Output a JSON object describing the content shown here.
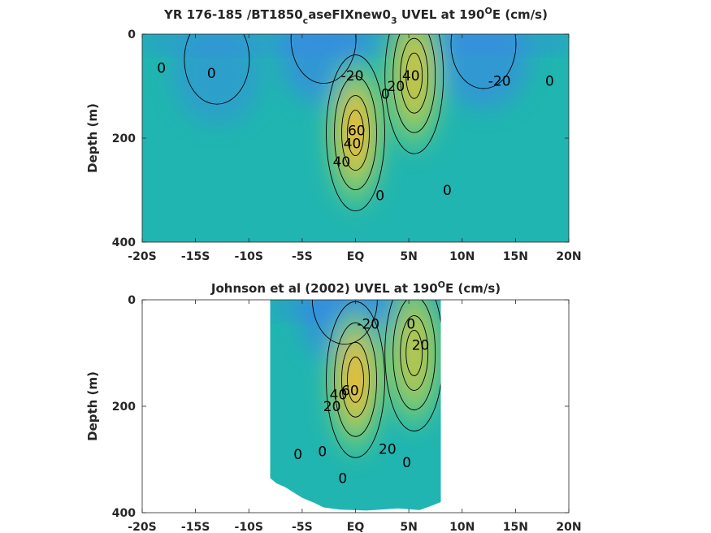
{
  "chart_data": [
    {
      "type": "heatmap",
      "title": "YR 176-185 /BT1850",
      "title_sub": "c",
      "title_mid": "aseFIXnew0",
      "title_sub2": "3",
      "title_end": " UVEL at 190",
      "title_sup": "O",
      "title_tail": "E (cm/s)",
      "ylabel": "Depth (m)",
      "xlim": [
        -20,
        20
      ],
      "ylim": [
        0,
        400
      ],
      "xticks": [
        "-20S",
        "-15S",
        "-10S",
        "-5S",
        "EQ",
        "5N",
        "10N",
        "15N",
        "20N"
      ],
      "yticks": [
        "0",
        "200",
        "400"
      ],
      "data_extent": [
        -20,
        20
      ],
      "colormap": {
        "low": "#3d7ff0",
        "mid": "#20b5b0",
        "high": "#f7b82e"
      },
      "features": [
        {
          "kind": "westward",
          "lat": -3,
          "depth": 40,
          "value": -25
        },
        {
          "kind": "westward",
          "lat": 12,
          "depth": 50,
          "value": -22
        },
        {
          "kind": "westward",
          "lat": -13,
          "depth": 80,
          "value": -6
        },
        {
          "kind": "EUC",
          "lat": 0,
          "depth": 190,
          "value": 75
        },
        {
          "kind": "NECC",
          "lat": 5.5,
          "depth": 80,
          "value": 42
        }
      ],
      "contour_labels": [
        {
          "text": "0",
          "lat": -18.2,
          "depth": 65
        },
        {
          "text": "0",
          "lat": -13.5,
          "depth": 75
        },
        {
          "text": "-20",
          "lat": -0.3,
          "depth": 80
        },
        {
          "text": "0",
          "lat": 2.8,
          "depth": 115
        },
        {
          "text": "20",
          "lat": 3.8,
          "depth": 100
        },
        {
          "text": "40",
          "lat": 5.2,
          "depth": 80
        },
        {
          "text": "-20",
          "lat": 13.5,
          "depth": 90
        },
        {
          "text": "0",
          "lat": 18.2,
          "depth": 90
        },
        {
          "text": "60",
          "lat": 0.1,
          "depth": 185
        },
        {
          "text": "40",
          "lat": -0.3,
          "depth": 210
        },
        {
          "text": "40",
          "lat": -1.3,
          "depth": 245
        },
        {
          "text": "0",
          "lat": 2.3,
          "depth": 310
        },
        {
          "text": "0",
          "lat": 8.6,
          "depth": 300
        }
      ]
    },
    {
      "type": "heatmap",
      "title": "Johnson et al (2002) UVEL at 190",
      "title_sup": "O",
      "title_tail": "E (cm/s)",
      "ylabel": "Depth (m)",
      "xlim": [
        -20,
        20
      ],
      "ylim": [
        0,
        400
      ],
      "xticks": [
        "-20S",
        "-15S",
        "-10S",
        "-5S",
        "EQ",
        "5N",
        "10N",
        "15N",
        "20N"
      ],
      "yticks": [
        "0",
        "200",
        "400"
      ],
      "data_extent": [
        -8,
        8
      ],
      "colormap": {
        "low": "#3d7ff0",
        "mid": "#20b5b0",
        "high": "#f7b82e"
      },
      "features": [
        {
          "kind": "westward",
          "lat": -1,
          "depth": 30,
          "value": -28
        },
        {
          "kind": "EUC",
          "lat": 0,
          "depth": 150,
          "value": 70
        },
        {
          "kind": "eastward",
          "lat": 5.5,
          "depth": 100,
          "value": 20
        }
      ],
      "contour_labels": [
        {
          "text": "-20",
          "lat": 1.2,
          "depth": 45
        },
        {
          "text": "0",
          "lat": 5.2,
          "depth": 45
        },
        {
          "text": "20",
          "lat": 6.1,
          "depth": 85
        },
        {
          "text": "40",
          "lat": -1.6,
          "depth": 178
        },
        {
          "text": "20",
          "lat": -2.2,
          "depth": 200
        },
        {
          "text": "60",
          "lat": -0.5,
          "depth": 170
        },
        {
          "text": "0",
          "lat": -5.4,
          "depth": 290
        },
        {
          "text": "0",
          "lat": -3.1,
          "depth": 285
        },
        {
          "text": "20",
          "lat": 3.0,
          "depth": 280
        },
        {
          "text": "0",
          "lat": 4.8,
          "depth": 305
        },
        {
          "text": "0",
          "lat": -1.2,
          "depth": 335
        }
      ]
    }
  ]
}
